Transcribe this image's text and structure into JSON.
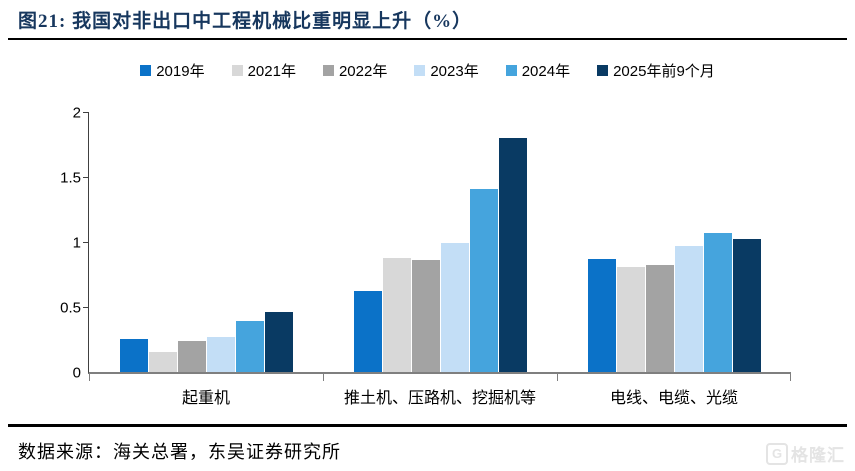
{
  "header": {
    "title": "图21:  我国对非出口中工程机械比重明显上升（%）"
  },
  "chart_data": {
    "type": "bar",
    "title": "我国对非出口中工程机械比重明显上升（%）",
    "unit": "%",
    "categories": [
      "起重机",
      "推土机、压路机、挖掘机等",
      "电线、电缆、光缆"
    ],
    "series": [
      {
        "name": "2019年",
        "color": "#0B72C8",
        "values": [
          0.25,
          0.62,
          0.87
        ]
      },
      {
        "name": "2021年",
        "color": "#D8D8D8",
        "values": [
          0.15,
          0.88,
          0.81
        ]
      },
      {
        "name": "2022年",
        "color": "#A3A3A3",
        "values": [
          0.24,
          0.86,
          0.82
        ]
      },
      {
        "name": "2023年",
        "color": "#C3DEF6",
        "values": [
          0.27,
          0.99,
          0.97
        ]
      },
      {
        "name": "2024年",
        "color": "#45A4DD",
        "values": [
          0.39,
          1.41,
          1.07
        ]
      },
      {
        "name": "2025年前9个月",
        "color": "#093A63",
        "values": [
          0.46,
          1.8,
          1.02
        ]
      }
    ],
    "ylim": [
      0,
      2
    ],
    "yticks": [
      0,
      0.5,
      1,
      1.5,
      2
    ],
    "ytick_labels": [
      "0",
      "0.5",
      "1",
      "1.5",
      "2"
    ],
    "legend_position": "top",
    "grid": false,
    "axis_colors": {
      "y_axis": "#404040",
      "baseline": "#7F7F7F"
    }
  },
  "footer": {
    "source": "数据来源：海关总署，东吴证券研究所"
  },
  "watermark": {
    "icon": "G",
    "text": "格隆汇"
  }
}
